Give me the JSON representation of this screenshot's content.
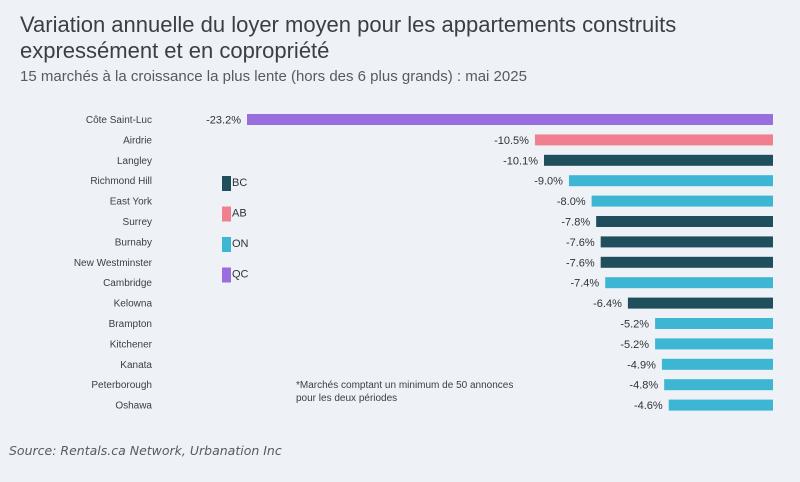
{
  "chart_data": {
    "type": "bar",
    "orientation": "horizontal",
    "title": "Variation annuelle du loyer moyen pour les appartements construits expressément et en copropriété",
    "subtitle": "15 marchés à la croissance la plus lente (hors des 6 plus grands) : mai 2025",
    "categories": [
      "Côte Saint-Luc",
      "Airdrie",
      "Langley",
      "Richmond Hill",
      "East York",
      "Surrey",
      "Burnaby",
      "New Westminster",
      "Cambridge",
      "Kelowna",
      "Brampton",
      "Kitchener",
      "Kanata",
      "Peterborough",
      "Oshawa"
    ],
    "values": [
      -23.2,
      -10.5,
      -10.1,
      -9.0,
      -8.0,
      -7.8,
      -7.6,
      -7.6,
      -7.4,
      -6.4,
      -5.2,
      -5.2,
      -4.9,
      -4.8,
      -4.6
    ],
    "value_labels": [
      "-23.2%",
      "-10.5%",
      "-10.1%",
      "-9.0%",
      "-8.0%",
      "-7.8%",
      "-7.6%",
      "-7.6%",
      "-7.4%",
      "-6.4%",
      "-5.2%",
      "-5.2%",
      "-4.9%",
      "-4.8%",
      "-4.6%"
    ],
    "province": [
      "QC",
      "AB",
      "BC",
      "ON",
      "ON",
      "BC",
      "BC",
      "BC",
      "ON",
      "BC",
      "ON",
      "ON",
      "ON",
      "ON",
      "ON"
    ],
    "legend": [
      {
        "label": "BC",
        "color": "#1f4e5c"
      },
      {
        "label": "AB",
        "color": "#f08090"
      },
      {
        "label": "ON",
        "color": "#3db6d3"
      },
      {
        "label": "QC",
        "color": "#9b6ee0"
      }
    ],
    "xlim": [
      -23.2,
      0
    ],
    "grid": false
  },
  "note": "*Marchés comptant un minimum de 50 annonces pour les deux périodes",
  "source": "Source: Rentals.ca Network, Urbanation Inc"
}
